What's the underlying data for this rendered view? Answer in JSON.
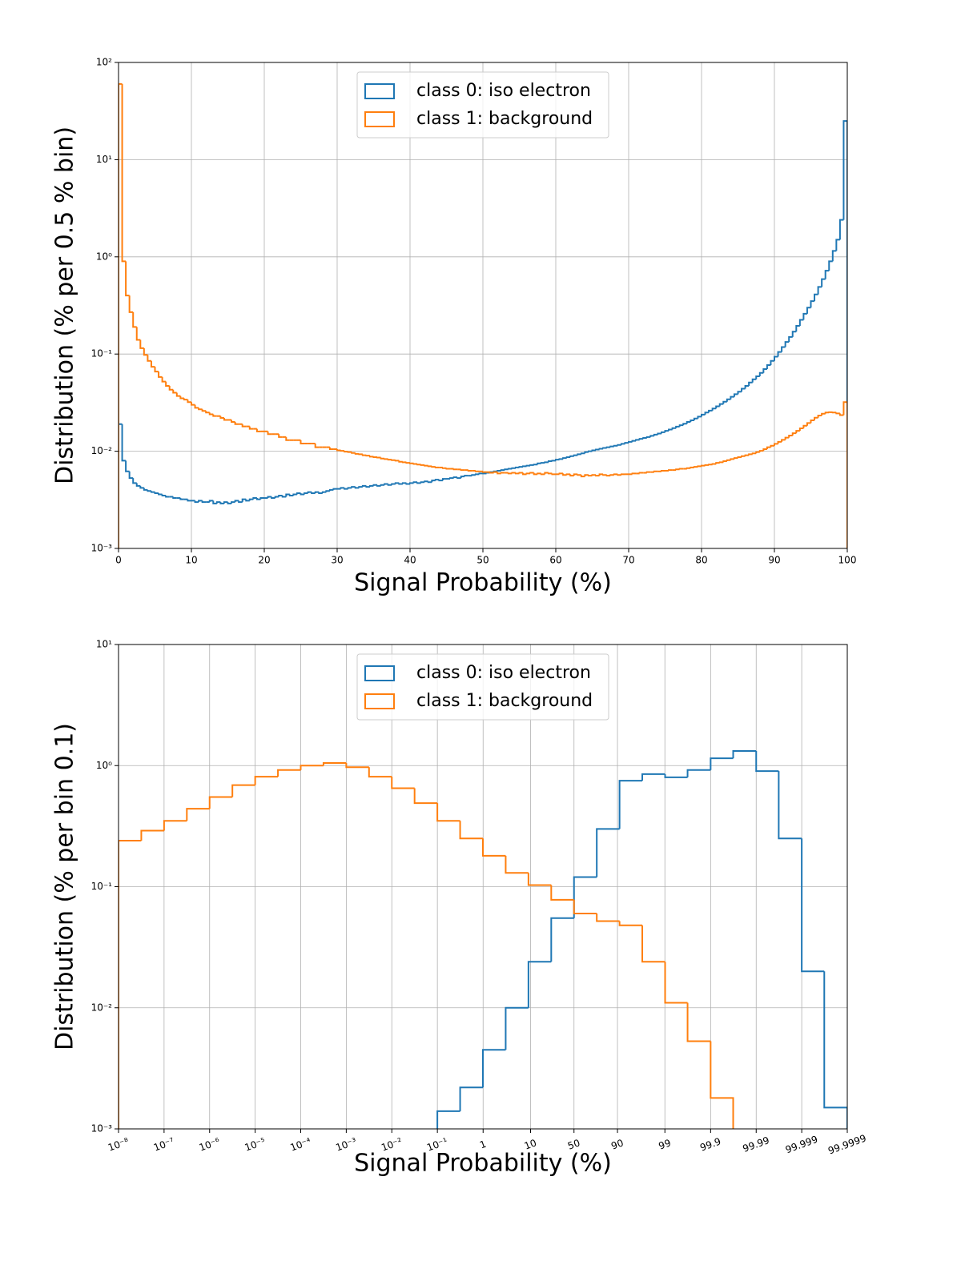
{
  "chart_data": [
    {
      "type": "histogram",
      "xlabel": "Signal Probability (%)",
      "ylabel": "Distribution (% per 0.5 % bin)",
      "xscale": "linear",
      "yscale": "log",
      "grid": true,
      "legend": "upper center",
      "xlim": [
        0,
        100
      ],
      "ylim": [
        0.001,
        100
      ],
      "xticks": [
        0,
        10,
        20,
        30,
        40,
        50,
        60,
        70,
        80,
        90,
        100
      ],
      "yticks": [
        {
          "value": 0.001,
          "label": "10⁻³"
        },
        {
          "value": 0.01,
          "label": "10⁻²"
        },
        {
          "value": 0.1,
          "label": "10⁻¹"
        },
        {
          "value": 1,
          "label": "10⁰"
        },
        {
          "value": 10,
          "label": "10¹"
        },
        {
          "value": 100,
          "label": "10²"
        }
      ],
      "bins": [
        0,
        0.5,
        1,
        1.5,
        2,
        2.5,
        3,
        3.5,
        4,
        4.5,
        5,
        5.5,
        6,
        6.5,
        7,
        7.5,
        8,
        8.5,
        9,
        9.5,
        10,
        10.5,
        11,
        11.5,
        12,
        12.5,
        13,
        13.5,
        14,
        14.5,
        15,
        15.5,
        16,
        16.5,
        17,
        17.5,
        18,
        18.5,
        19,
        19.5,
        20,
        20.5,
        21,
        21.5,
        22,
        22.5,
        23,
        23.5,
        24,
        24.5,
        25,
        25.5,
        26,
        26.5,
        27,
        27.5,
        28,
        28.5,
        29,
        29.5,
        30,
        30.5,
        31,
        31.5,
        32,
        32.5,
        33,
        33.5,
        34,
        34.5,
        35,
        35.5,
        36,
        36.5,
        37,
        37.5,
        38,
        38.5,
        39,
        39.5,
        40,
        40.5,
        41,
        41.5,
        42,
        42.5,
        43,
        43.5,
        44,
        44.5,
        45,
        45.5,
        46,
        46.5,
        47,
        47.5,
        48,
        48.5,
        49,
        49.5,
        50,
        50.5,
        51,
        51.5,
        52,
        52.5,
        53,
        53.5,
        54,
        54.5,
        55,
        55.5,
        56,
        56.5,
        57,
        57.5,
        58,
        58.5,
        59,
        59.5,
        60,
        60.5,
        61,
        61.5,
        62,
        62.5,
        63,
        63.5,
        64,
        64.5,
        65,
        65.5,
        66,
        66.5,
        67,
        67.5,
        68,
        68.5,
        69,
        69.5,
        70,
        70.5,
        71,
        71.5,
        72,
        72.5,
        73,
        73.5,
        74,
        74.5,
        75,
        75.5,
        76,
        76.5,
        77,
        77.5,
        78,
        78.5,
        79,
        79.5,
        80,
        80.5,
        81,
        81.5,
        82,
        82.5,
        83,
        83.5,
        84,
        84.5,
        85,
        85.5,
        86,
        86.5,
        87,
        87.5,
        88,
        88.5,
        89,
        89.5,
        90,
        90.5,
        91,
        91.5,
        92,
        92.5,
        93,
        93.5,
        94,
        94.5,
        95,
        95.5,
        96,
        96.5,
        97,
        97.5,
        98,
        98.5,
        99,
        99.5,
        100
      ],
      "series": [
        {
          "name": "class 0: iso electron",
          "color": "#1f77b4",
          "values": [
            0.019,
            0.008,
            0.0062,
            0.0053,
            0.0047,
            0.0044,
            0.0042,
            0.004,
            0.0039,
            0.0038,
            0.0037,
            0.0036,
            0.0035,
            0.0034,
            0.0034,
            0.0033,
            0.0033,
            0.0032,
            0.0032,
            0.0031,
            0.0031,
            0.003,
            0.0031,
            0.003,
            0.003,
            0.0031,
            0.0029,
            0.003,
            0.0029,
            0.003,
            0.0029,
            0.003,
            0.0031,
            0.003,
            0.0032,
            0.0031,
            0.0032,
            0.0033,
            0.0032,
            0.0033,
            0.0033,
            0.0034,
            0.0033,
            0.0034,
            0.0035,
            0.0034,
            0.0036,
            0.0035,
            0.0036,
            0.0037,
            0.0036,
            0.0037,
            0.0038,
            0.0037,
            0.0038,
            0.0037,
            0.0038,
            0.0039,
            0.004,
            0.0041,
            0.0041,
            0.0042,
            0.0041,
            0.0042,
            0.0043,
            0.0042,
            0.0043,
            0.0044,
            0.0043,
            0.0044,
            0.0045,
            0.0044,
            0.0045,
            0.0046,
            0.0045,
            0.0046,
            0.0047,
            0.0046,
            0.0047,
            0.0046,
            0.0047,
            0.0048,
            0.0047,
            0.0048,
            0.0049,
            0.0048,
            0.005,
            0.0051,
            0.005,
            0.0052,
            0.0052,
            0.0053,
            0.0054,
            0.0053,
            0.0055,
            0.0056,
            0.0056,
            0.0057,
            0.0058,
            0.0059,
            0.0059,
            0.006,
            0.0061,
            0.0062,
            0.0063,
            0.0064,
            0.0065,
            0.0066,
            0.0067,
            0.0068,
            0.0069,
            0.007,
            0.0071,
            0.0072,
            0.0073,
            0.0075,
            0.0076,
            0.0077,
            0.0079,
            0.008,
            0.0082,
            0.0083,
            0.0085,
            0.0087,
            0.0089,
            0.0091,
            0.0093,
            0.0095,
            0.0098,
            0.01,
            0.0102,
            0.0104,
            0.0106,
            0.0108,
            0.011,
            0.0112,
            0.0114,
            0.0116,
            0.0119,
            0.0122,
            0.0125,
            0.0128,
            0.0131,
            0.0134,
            0.0137,
            0.014,
            0.0144,
            0.0148,
            0.0152,
            0.0157,
            0.0162,
            0.0167,
            0.0173,
            0.0179,
            0.0185,
            0.0192,
            0.02,
            0.0208,
            0.0217,
            0.0227,
            0.0238,
            0.025,
            0.0262,
            0.0275,
            0.029,
            0.0306,
            0.0323,
            0.0342,
            0.0363,
            0.0386,
            0.041,
            0.044,
            0.047,
            0.051,
            0.055,
            0.059,
            0.064,
            0.07,
            0.077,
            0.085,
            0.094,
            0.105,
            0.118,
            0.133,
            0.15,
            0.17,
            0.195,
            0.225,
            0.26,
            0.3,
            0.35,
            0.41,
            0.49,
            0.59,
            0.72,
            0.9,
            1.15,
            1.5,
            2.4,
            25
          ]
        },
        {
          "name": "class 1: background",
          "color": "#ff7f0e",
          "values": [
            60,
            0.9,
            0.4,
            0.27,
            0.19,
            0.14,
            0.115,
            0.098,
            0.085,
            0.074,
            0.066,
            0.058,
            0.052,
            0.047,
            0.043,
            0.04,
            0.037,
            0.035,
            0.034,
            0.032,
            0.03,
            0.028,
            0.027,
            0.026,
            0.025,
            0.024,
            0.023,
            0.023,
            0.022,
            0.021,
            0.021,
            0.02,
            0.019,
            0.019,
            0.018,
            0.018,
            0.017,
            0.017,
            0.016,
            0.016,
            0.016,
            0.015,
            0.015,
            0.015,
            0.014,
            0.014,
            0.013,
            0.013,
            0.013,
            0.013,
            0.012,
            0.012,
            0.012,
            0.012,
            0.011,
            0.011,
            0.011,
            0.011,
            0.0105,
            0.0105,
            0.0102,
            0.0101,
            0.0099,
            0.0098,
            0.0096,
            0.0094,
            0.0093,
            0.0091,
            0.009,
            0.0088,
            0.0087,
            0.0086,
            0.0084,
            0.0083,
            0.0082,
            0.0081,
            0.008,
            0.0078,
            0.0077,
            0.0076,
            0.0075,
            0.0074,
            0.0073,
            0.0072,
            0.0071,
            0.007,
            0.0069,
            0.0068,
            0.0068,
            0.0067,
            0.0066,
            0.0066,
            0.0065,
            0.0065,
            0.0064,
            0.0064,
            0.0063,
            0.0063,
            0.0062,
            0.0062,
            0.0061,
            0.0061,
            0.006,
            0.0061,
            0.0059,
            0.006,
            0.006,
            0.0059,
            0.006,
            0.0059,
            0.006,
            0.0058,
            0.0059,
            0.006,
            0.0058,
            0.0059,
            0.0058,
            0.006,
            0.0059,
            0.0058,
            0.0058,
            0.0059,
            0.0057,
            0.0058,
            0.0056,
            0.0058,
            0.0057,
            0.0055,
            0.0057,
            0.0056,
            0.0057,
            0.0056,
            0.0058,
            0.0057,
            0.0056,
            0.0057,
            0.0058,
            0.0057,
            0.0058,
            0.0058,
            0.0058,
            0.0059,
            0.0059,
            0.006,
            0.006,
            0.0061,
            0.0061,
            0.0062,
            0.0062,
            0.0063,
            0.0063,
            0.0064,
            0.0064,
            0.0065,
            0.0066,
            0.0066,
            0.0067,
            0.0068,
            0.0069,
            0.007,
            0.0071,
            0.0072,
            0.0073,
            0.0074,
            0.0076,
            0.0077,
            0.0079,
            0.0081,
            0.0083,
            0.0085,
            0.0087,
            0.0089,
            0.0091,
            0.0093,
            0.0095,
            0.0098,
            0.0101,
            0.0105,
            0.011,
            0.0114,
            0.0119,
            0.0125,
            0.0131,
            0.0138,
            0.0145,
            0.0153,
            0.0162,
            0.0172,
            0.0183,
            0.0195,
            0.0208,
            0.0221,
            0.0233,
            0.0243,
            0.025,
            0.0252,
            0.025,
            0.0245,
            0.0235,
            0.032
          ]
        }
      ]
    },
    {
      "type": "histogram",
      "xlabel": "Signal Probability (%)",
      "ylabel": "Distribution (% per bin 0.1)",
      "xscale": "logit",
      "yscale": "log",
      "grid": true,
      "legend": "upper center",
      "xlim": [
        1e-08,
        99.9999
      ],
      "ylim": [
        0.001,
        10
      ],
      "xticks": [
        {
          "value": 1e-08,
          "label": "10⁻⁸"
        },
        {
          "value": 1e-07,
          "label": "10⁻⁷"
        },
        {
          "value": 1e-06,
          "label": "10⁻⁶"
        },
        {
          "value": 1e-05,
          "label": "10⁻⁵"
        },
        {
          "value": 0.0001,
          "label": "10⁻⁴"
        },
        {
          "value": 0.001,
          "label": "10⁻³"
        },
        {
          "value": 0.01,
          "label": "10⁻²"
        },
        {
          "value": 0.1,
          "label": "10⁻¹"
        },
        1,
        10,
        50,
        90,
        99,
        99.9,
        99.99,
        99.999,
        99.9999
      ],
      "yticks": [
        {
          "value": 0.001,
          "label": "10⁻³"
        },
        {
          "value": 0.01,
          "label": "10⁻²"
        },
        {
          "value": 0.1,
          "label": "10⁻¹"
        },
        {
          "value": 1,
          "label": "10⁰"
        },
        {
          "value": 10,
          "label": "10¹"
        }
      ],
      "bins": [
        1e-08,
        3.162e-08,
        1e-07,
        3.162e-07,
        1e-06,
        3.162e-06,
        1e-05,
        3.162e-05,
        0.0001,
        0.0003162,
        0.001,
        0.003162,
        0.01,
        0.03161,
        0.0999,
        0.3152,
        0.9901,
        3.066,
        9.091,
        24.03,
        50,
        75.97,
        90.91,
        96.93,
        99.01,
        99.68,
        99.9,
        99.968,
        99.99,
        99.9968,
        99.999,
        99.99968,
        99.9999
      ],
      "series": [
        {
          "name": "class 0: iso electron",
          "color": "#1f77b4",
          "values": [
            null,
            null,
            null,
            null,
            null,
            null,
            null,
            null,
            null,
            null,
            null,
            null,
            null,
            null,
            0.0014,
            0.0022,
            0.0045,
            0.01,
            0.024,
            0.055,
            0.12,
            0.3,
            0.75,
            0.85,
            0.8,
            0.92,
            1.15,
            1.32,
            0.9,
            0.25,
            0.02,
            0.0015
          ]
        },
        {
          "name": "class 1: background",
          "color": "#ff7f0e",
          "values": [
            0.24,
            0.29,
            0.35,
            0.44,
            0.55,
            0.69,
            0.81,
            0.92,
            1,
            1.05,
            0.97,
            0.81,
            0.65,
            0.49,
            0.35,
            0.25,
            0.18,
            0.13,
            0.103,
            0.078,
            0.06,
            0.052,
            0.048,
            0.024,
            0.011,
            0.0053,
            0.0018,
            null,
            null,
            null,
            null,
            null
          ]
        }
      ]
    }
  ]
}
